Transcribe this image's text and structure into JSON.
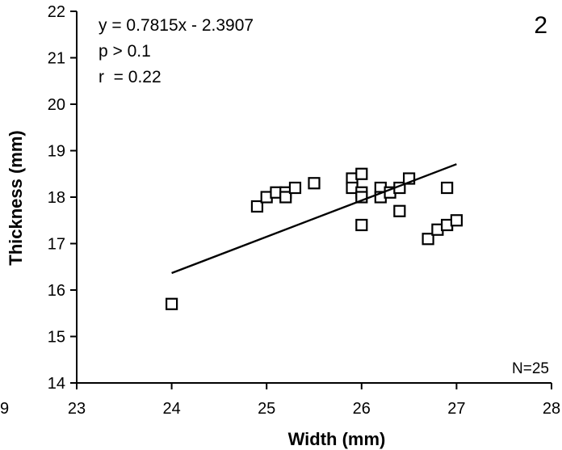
{
  "chart_data": {
    "type": "scatter",
    "xlabel": "Width (mm)",
    "ylabel": "Thickness (mm)",
    "xlim": [
      23,
      28
    ],
    "ylim": [
      14,
      22
    ],
    "xticks": [
      23,
      24,
      25,
      26,
      27,
      28
    ],
    "yticks": [
      14,
      15,
      16,
      17,
      18,
      19,
      20,
      21,
      22
    ],
    "x_tick_labels": [
      "23",
      "24",
      "25",
      "26",
      "27",
      "28"
    ],
    "y_tick_labels": [
      "14",
      "15",
      "16",
      "17",
      "18",
      "19",
      "20",
      "21",
      "22"
    ],
    "clipped_left_label": "9",
    "panel_label": "2",
    "n_label": "N=25",
    "annotations": [
      "y = 0.7815x - 2.3907",
      "p > 0.1",
      "r  = 0.22"
    ],
    "fit": {
      "slope": 0.7815,
      "intercept": -2.3907,
      "x_range": [
        24,
        27
      ]
    },
    "grid": false,
    "legend": "none",
    "marker": "open-square",
    "points": [
      [
        24.0,
        15.7
      ],
      [
        24.9,
        17.8
      ],
      [
        25.0,
        18.0
      ],
      [
        25.1,
        18.1
      ],
      [
        25.2,
        18.1
      ],
      [
        25.2,
        18.0
      ],
      [
        25.3,
        18.2
      ],
      [
        25.5,
        18.3
      ],
      [
        25.9,
        18.4
      ],
      [
        25.9,
        18.2
      ],
      [
        26.0,
        18.5
      ],
      [
        26.0,
        18.1
      ],
      [
        26.0,
        18.0
      ],
      [
        26.0,
        17.4
      ],
      [
        26.2,
        18.2
      ],
      [
        26.2,
        18.0
      ],
      [
        26.3,
        18.1
      ],
      [
        26.4,
        18.2
      ],
      [
        26.4,
        17.7
      ],
      [
        26.5,
        18.4
      ],
      [
        26.7,
        17.1
      ],
      [
        26.8,
        17.3
      ],
      [
        26.9,
        17.4
      ],
      [
        26.9,
        18.2
      ],
      [
        27.0,
        17.5
      ]
    ]
  }
}
